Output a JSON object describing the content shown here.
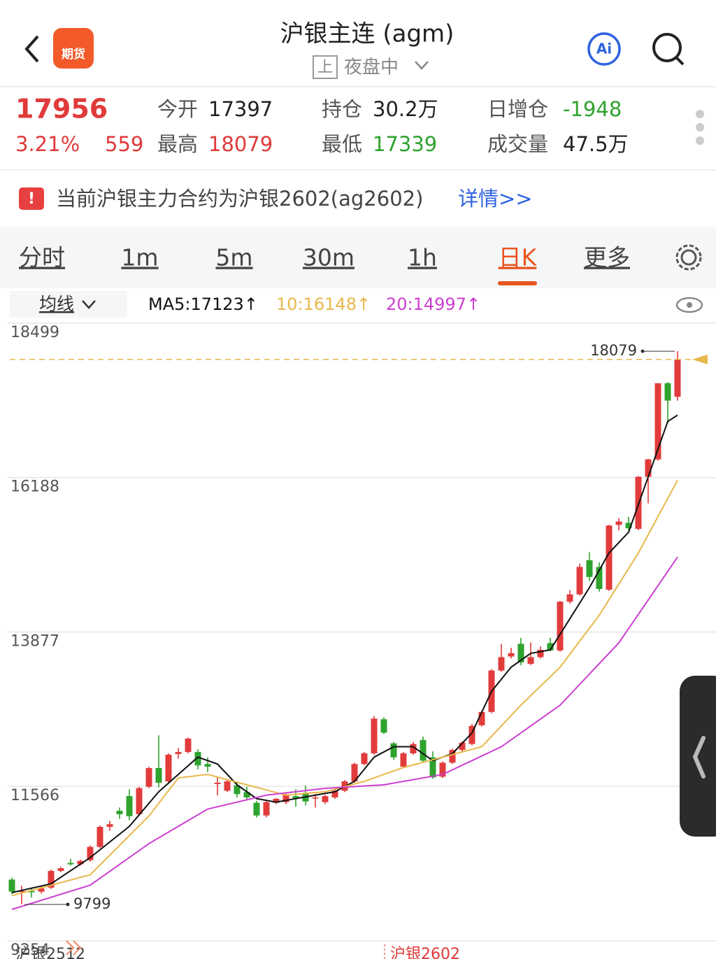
{
  "header": {
    "logo": "期货",
    "title": "沪银主连 (agm)",
    "badge": "上",
    "status": "夜盘中"
  },
  "quote": {
    "price": "17956",
    "change_pct": "3.21%",
    "change": "559",
    "open_label": "今开",
    "open": "17397",
    "high_label": "最高",
    "high": "18079",
    "hold_label": "持仓",
    "hold": "30.2万",
    "low_label": "最低",
    "low": "17339",
    "inc_label": "日增仓",
    "inc": "-1948",
    "vol_label": "成交量",
    "vol": "47.5万"
  },
  "notice": {
    "text": "当前沪银主力合约为沪银2602(ag2602)",
    "link": "详情>>"
  },
  "tabs": {
    "items": [
      "分时",
      "1m",
      "5m",
      "30m",
      "1h",
      "日K",
      "更多"
    ],
    "active": 5
  },
  "ma_bar": {
    "selector": "均线",
    "labels": [
      "MA5:17123↑",
      "10:16148↑",
      "20:14997↑"
    ]
  },
  "contracts": [
    "沪银2512",
    "沪银2602"
  ],
  "chart_data": {
    "type": "candlestick",
    "ylim": [
      9254,
      18499
    ],
    "yticks": [
      9254,
      11566,
      13877,
      16188,
      18499
    ],
    "up_color": "#e23b3b",
    "down_color": "#2ea32e",
    "grid": true,
    "candles": {
      "open": [
        10170,
        9990,
        10000,
        9990,
        10050,
        10300,
        10420,
        10400,
        10460,
        10660,
        10960,
        11200,
        11420,
        11150,
        11560,
        11840,
        11640,
        12050,
        12080,
        12080,
        11900,
        11600,
        11500,
        11580,
        11480,
        11320,
        11130,
        11320,
        11330,
        11420,
        11470,
        11390,
        11330,
        11400,
        11500,
        11640,
        11900,
        12060,
        12570,
        12210,
        11860,
        12060,
        12260,
        12000,
        11710,
        11920,
        12110,
        12200,
        12480,
        12680,
        13300,
        13510,
        13700,
        13400,
        13500,
        13710,
        13600,
        14330,
        14440,
        14950,
        14850,
        14510,
        15480,
        15510,
        15420,
        16200,
        16460,
        17600,
        17397
      ],
      "high": [
        10200,
        10080,
        10050,
        10070,
        10320,
        10360,
        10480,
        10470,
        10680,
        10980,
        11050,
        11250,
        11520,
        11560,
        11860,
        12330,
        12060,
        12140,
        12300,
        12120,
        12000,
        11700,
        11660,
        11640,
        11560,
        11350,
        11360,
        11390,
        11460,
        11520,
        11580,
        11450,
        11440,
        11520,
        11660,
        11920,
        12080,
        12620,
        12600,
        12230,
        12080,
        12230,
        12310,
        12090,
        11940,
        12130,
        12240,
        12500,
        12700,
        13320,
        13700,
        13640,
        13790,
        13720,
        13660,
        13790,
        14340,
        14500,
        14900,
        15070,
        14920,
        15480,
        15580,
        15600,
        16210,
        16470,
        17600,
        17620,
        18079
      ],
      "low": [
        9950,
        9799,
        9900,
        9960,
        10030,
        10280,
        10380,
        10380,
        10440,
        10640,
        10900,
        11080,
        11060,
        11120,
        11540,
        11550,
        11620,
        11980,
        12060,
        11820,
        11780,
        11430,
        11480,
        11400,
        11360,
        11100,
        11100,
        11300,
        11300,
        11260,
        11280,
        11250,
        11300,
        11380,
        11480,
        11620,
        11880,
        12040,
        12350,
        11960,
        11840,
        12040,
        11920,
        11680,
        11690,
        11900,
        12090,
        12180,
        12460,
        12660,
        13280,
        13480,
        13380,
        13380,
        13480,
        13590,
        13580,
        14300,
        14420,
        14640,
        14480,
        14490,
        15400,
        15400,
        15400,
        15800,
        16440,
        17000,
        17339
      ],
      "close": [
        9990,
        10000,
        9980,
        10040,
        10300,
        10340,
        10400,
        10450,
        10660,
        10960,
        11000,
        11150,
        11120,
        11540,
        11840,
        11620,
        12040,
        12080,
        12280,
        11880,
        11860,
        11620,
        11640,
        11450,
        11400,
        11130,
        11330,
        11380,
        11440,
        11380,
        11340,
        11400,
        11420,
        11500,
        11640,
        11900,
        12060,
        12580,
        12370,
        12000,
        12060,
        12200,
        11950,
        11700,
        11920,
        12110,
        12220,
        12470,
        12680,
        13300,
        13500,
        13560,
        13420,
        13500,
        13610,
        13600,
        14330,
        14440,
        14850,
        14700,
        14520,
        15470,
        15530,
        15430,
        16200,
        16460,
        17600,
        17340,
        17956
      ]
    },
    "series": [
      {
        "color": "#111111",
        "x": [
          0,
          4,
          8,
          12,
          15,
          17,
          19,
          21,
          23,
          25,
          27,
          29,
          31,
          33,
          35,
          37,
          39,
          41,
          43,
          45,
          47,
          49,
          51,
          53,
          55,
          57,
          59,
          61,
          63,
          65,
          67,
          68
        ],
        "values": [
          9975,
          10108,
          10500,
          10967,
          11485,
          11744,
          12003,
          11900,
          11589,
          11382,
          11330,
          11382,
          11434,
          11485,
          11641,
          12003,
          12159,
          12159,
          11951,
          12055,
          12366,
          12988,
          13350,
          13557,
          13609,
          14075,
          14541,
          15060,
          15370,
          16199,
          17028,
          17123
        ]
      },
      {
        "color": "#e8b84a",
        "x": [
          0,
          8,
          14,
          17,
          20,
          24,
          28,
          32,
          36,
          40,
          44,
          48,
          52,
          56,
          60,
          64,
          68
        ],
        "values": [
          9930,
          10242,
          11123,
          11692,
          11744,
          11589,
          11434,
          11485,
          11641,
          11848,
          12003,
          12159,
          12781,
          13350,
          14127,
          15060,
          16148
        ]
      },
      {
        "color": "#cc3fd0",
        "x": [
          0,
          8,
          14,
          20,
          26,
          32,
          38,
          44,
          50,
          56,
          62,
          68
        ],
        "values": [
          9724,
          10087,
          10709,
          11226,
          11434,
          11537,
          11589,
          11744,
          12159,
          12781,
          13713,
          14997
        ]
      }
    ]
  }
}
